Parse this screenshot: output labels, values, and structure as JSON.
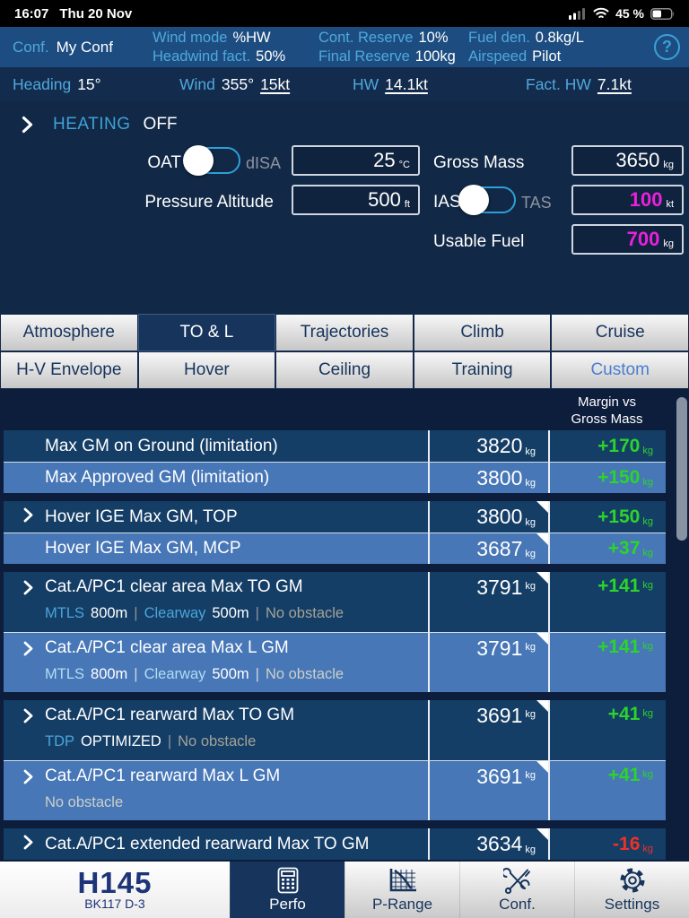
{
  "status_bar": {
    "time": "16:07",
    "date": "Thu 20 Nov",
    "battery_pct": "45 %"
  },
  "config_bar": {
    "conf_label": "Conf.",
    "conf_value": "My Conf",
    "fields": [
      {
        "label": "Wind mode",
        "value": "%HW"
      },
      {
        "label": "Headwind fact.",
        "value": "50%"
      },
      {
        "label": "Cont. Reserve",
        "value": "10%"
      },
      {
        "label": "Final Reserve",
        "value": "100kg"
      },
      {
        "label": "Fuel den.",
        "value": "0.8kg/L"
      },
      {
        "label": "Airspeed",
        "value": "Pilot"
      }
    ],
    "help_label": "?"
  },
  "heading_bar": {
    "heading_label": "Heading",
    "heading_value": "15°",
    "wind_label": "Wind",
    "wind_dir": "355°",
    "wind_speed": "15kt",
    "hw_label": "HW",
    "hw_value": "14.1kt",
    "fact_hw_label": "Fact. HW",
    "fact_hw_value": "7.1kt"
  },
  "heating": {
    "label": "HEATING",
    "value": "OFF"
  },
  "form": {
    "oat": {
      "label": "OAT",
      "alt_label": "dISA",
      "value": "25",
      "unit": "°C"
    },
    "gross_mass": {
      "label": "Gross Mass",
      "value": "3650",
      "unit": "kg"
    },
    "pressure_altitude": {
      "label": "Pressure Altitude",
      "value": "500",
      "unit": "ft"
    },
    "airspeed": {
      "label": "IAS",
      "alt_label": "TAS",
      "value": "100",
      "unit": "kt"
    },
    "usable_fuel": {
      "label": "Usable Fuel",
      "value": "700",
      "unit": "kg"
    }
  },
  "tabs": {
    "row1": [
      "Atmosphere",
      "TO & L",
      "Trajectories",
      "Climb",
      "Cruise"
    ],
    "row2": [
      "H-V Envelope",
      "Hover",
      "Ceiling",
      "Training",
      "Custom"
    ],
    "selected": "TO & L",
    "accent_tab": "Custom"
  },
  "results_table": {
    "margin_header_line1": "Margin vs",
    "margin_header_line2": "Gross Mass",
    "unit": "kg",
    "groups": [
      {
        "rows": [
          {
            "title": "Max GM on Ground (limitation)",
            "chevron": false,
            "corner": false,
            "value": "3820",
            "margin": "+170",
            "margin_state": "ok"
          },
          {
            "title": "Max Approved GM (limitation)",
            "chevron": false,
            "corner": false,
            "value": "3800",
            "margin": "+150",
            "margin_state": "ok"
          }
        ]
      },
      {
        "rows": [
          {
            "title": "Hover IGE Max GM, TOP",
            "chevron": true,
            "corner": true,
            "value": "3800",
            "margin": "+150",
            "margin_state": "ok"
          },
          {
            "title": "Hover IGE Max GM, MCP",
            "chevron": false,
            "corner": true,
            "value": "3687",
            "margin": "+37",
            "margin_state": "ok"
          }
        ]
      },
      {
        "rows": [
          {
            "title": "Cat.A/PC1 clear area Max TO GM",
            "chevron": true,
            "corner": true,
            "value": "3791",
            "margin": "+141",
            "margin_state": "ok",
            "subtitle": [
              {
                "t": "MTLS",
                "s": "key"
              },
              {
                "t": "800m",
                "s": "val"
              },
              {
                "t": "|",
                "s": "sep"
              },
              {
                "t": "Clearway",
                "s": "key"
              },
              {
                "t": "500m",
                "s": "val"
              },
              {
                "t": "|",
                "s": "sep"
              },
              {
                "t": "No obstacle",
                "s": "muted"
              }
            ]
          },
          {
            "title": "Cat.A/PC1 clear area Max L GM",
            "chevron": true,
            "corner": true,
            "value": "3791",
            "margin": "+141",
            "margin_state": "ok",
            "subtitle": [
              {
                "t": "MTLS",
                "s": "key"
              },
              {
                "t": "800m",
                "s": "val"
              },
              {
                "t": "|",
                "s": "sep"
              },
              {
                "t": "Clearway",
                "s": "key"
              },
              {
                "t": "500m",
                "s": "val"
              },
              {
                "t": "|",
                "s": "sep"
              },
              {
                "t": "No obstacle",
                "s": "muted"
              }
            ]
          }
        ]
      },
      {
        "rows": [
          {
            "title": "Cat.A/PC1 rearward Max TO GM",
            "chevron": true,
            "corner": true,
            "value": "3691",
            "margin": "+41",
            "margin_state": "ok",
            "subtitle": [
              {
                "t": "TDP",
                "s": "key"
              },
              {
                "t": "OPTIMIZED",
                "s": "val"
              },
              {
                "t": "|",
                "s": "sep"
              },
              {
                "t": "No obstacle",
                "s": "muted"
              }
            ]
          },
          {
            "title": "Cat.A/PC1 rearward Max L GM",
            "chevron": true,
            "corner": true,
            "value": "3691",
            "margin": "+41",
            "margin_state": "ok",
            "subtitle": [
              {
                "t": "No obstacle",
                "s": "muted"
              }
            ]
          }
        ]
      },
      {
        "rows": [
          {
            "title": "Cat.A/PC1 extended rearward Max TO GM",
            "chevron": true,
            "corner": true,
            "value": "3634",
            "margin": "-16",
            "margin_state": "neg"
          }
        ]
      }
    ]
  },
  "bottom_nav": {
    "brand_title": "H145",
    "brand_subtitle": "BK117 D-3",
    "items": [
      {
        "label": "Perfo",
        "icon": "calculator-icon",
        "active": true
      },
      {
        "label": "P-Range",
        "icon": "chart-icon",
        "active": false
      },
      {
        "label": "Conf.",
        "icon": "tools-icon",
        "active": false
      },
      {
        "label": "Settings",
        "icon": "gear-icon",
        "active": false
      }
    ]
  },
  "colors": {
    "accent_blue": "#3fa2d8",
    "value_magenta": "#ea21dc",
    "margin_green": "#2bd42b",
    "margin_red": "#ef3124",
    "row_dark": "#153e67",
    "row_light": "#4777b7"
  }
}
